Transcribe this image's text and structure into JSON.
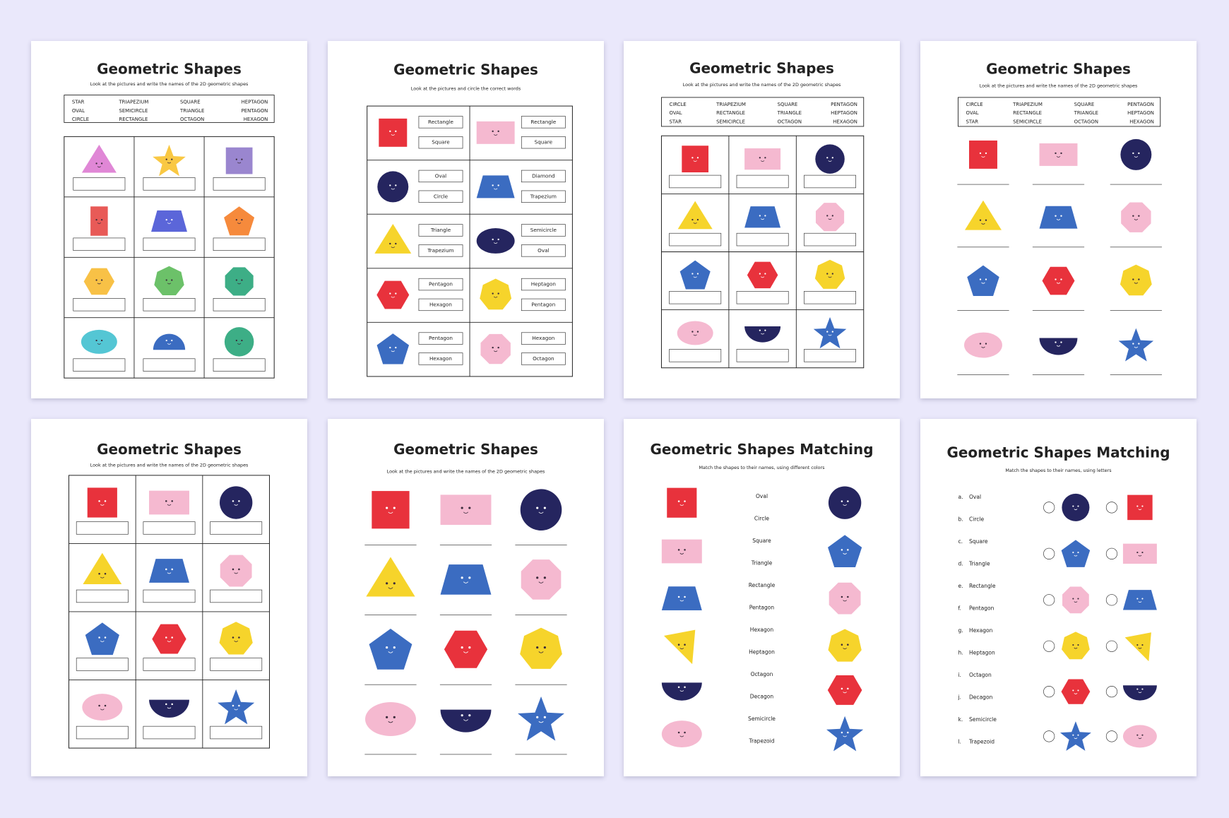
{
  "pages": [
    {
      "title": "Geometric Shapes",
      "subtitle": "Look at the pictures and write the names of the 2D geometric shapes",
      "word_bank": [
        [
          "STAR",
          "TRIAPEZIUM",
          "SQUARE",
          "HEPTAGON"
        ],
        [
          "OVAL",
          "SEMICIRCLE",
          "TRIANGLE",
          "PENTAGON"
        ],
        [
          "CIRCLE",
          "RECTANGLE",
          "OCTAGON",
          "HEXAGON"
        ]
      ]
    },
    {
      "title": "Geometric Shapes",
      "subtitle": "Look at the pictures and circle the correct words",
      "choices": [
        [
          [
            "Rectangle",
            "Square"
          ],
          [
            "Rectangle",
            "Square"
          ]
        ],
        [
          [
            "Oval",
            "Circle"
          ],
          [
            "Diamond",
            "Trapezium"
          ]
        ],
        [
          [
            "Triangle",
            "Trapezium"
          ],
          [
            "Semicircle",
            "Oval"
          ]
        ],
        [
          [
            "Pentagon",
            "Hexagon"
          ],
          [
            "Heptagon",
            "Pentagon"
          ]
        ],
        [
          [
            "Pentagon",
            "Hexagon"
          ],
          [
            "Hexagon",
            "Octagon"
          ]
        ]
      ]
    },
    {
      "title": "Geometric Shapes",
      "subtitle": "Look at the pictures and write the names of the 2D geometric shapes",
      "word_bank": [
        [
          "CIRCLE",
          "TRIAPEZIUM",
          "SQUARE",
          "PENTAGON"
        ],
        [
          "OVAL",
          "RECTANGLE",
          "TRIANGLE",
          "HEPTAGON"
        ],
        [
          "STAR",
          "SEMICIRCLE",
          "OCTAGON",
          "HEXAGON"
        ]
      ]
    },
    {
      "title": "Geometric Shapes",
      "subtitle": "Look at the pictures and write the names of the 2D geometric shapes",
      "word_bank": [
        [
          "CIRCLE",
          "TRIAPEZIUM",
          "SQUARE",
          "PENTAGON"
        ],
        [
          "OVAL",
          "RECTANGLE",
          "TRIANGLE",
          "HEPTAGON"
        ],
        [
          "STAR",
          "SEMICIRCLE",
          "OCTAGON",
          "HEXAGON"
        ]
      ]
    },
    {
      "title": "Geometric Shapes",
      "subtitle": "Look at the pictures and write the names of the 2D geometric shapes"
    },
    {
      "title": "Geometric Shapes",
      "subtitle": "Look at the pictures and write the names of the 2D geometric shapes"
    },
    {
      "title": "Geometric Shapes Matching",
      "subtitle": "Match the shapes to their names, using different colors",
      "names": [
        "Oval",
        "Circle",
        "Square",
        "Triangle",
        "Rectangle",
        "Pentagon",
        "Hexagon",
        "Heptagon",
        "Octagon",
        "Decagon",
        "Semicircle",
        "Trapezoid"
      ]
    },
    {
      "title": "Geometric Shapes Matching",
      "subtitle": "Match the shapes to their names, using letters",
      "items": [
        {
          "letter": "a.",
          "name": "Oval"
        },
        {
          "letter": "b.",
          "name": "Circle"
        },
        {
          "letter": "c.",
          "name": "Square"
        },
        {
          "letter": "d.",
          "name": "Triangle"
        },
        {
          "letter": "e.",
          "name": "Rectangle"
        },
        {
          "letter": "f.",
          "name": "Pentagon"
        },
        {
          "letter": "g.",
          "name": "Hexagon"
        },
        {
          "letter": "h.",
          "name": "Heptagon"
        },
        {
          "letter": "i.",
          "name": "Octagon"
        },
        {
          "letter": "j.",
          "name": "Decagon"
        },
        {
          "letter": "k.",
          "name": "Semicircle"
        },
        {
          "letter": "l.",
          "name": "Trapezoid"
        }
      ]
    }
  ]
}
